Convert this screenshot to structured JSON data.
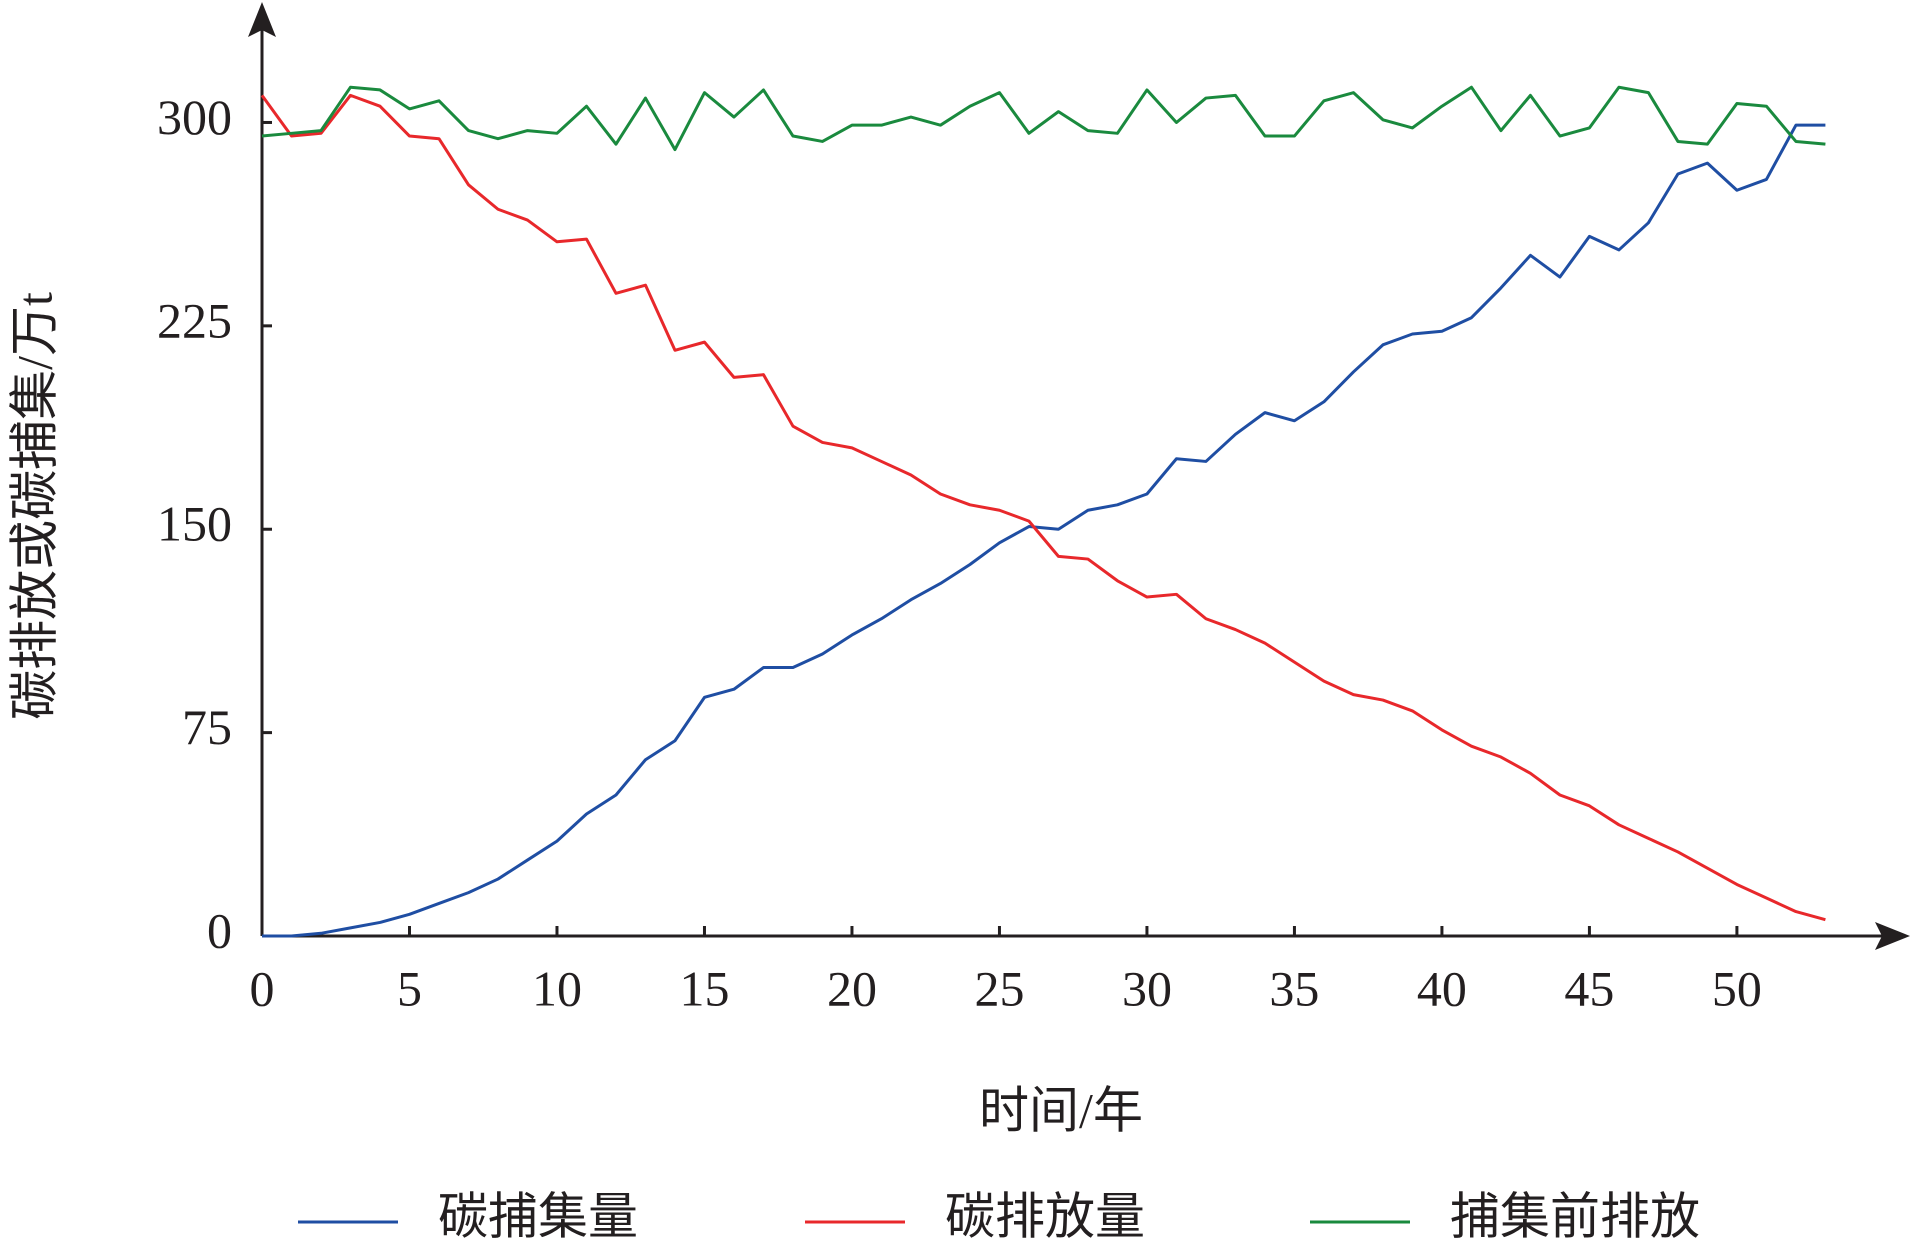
{
  "chart_data": {
    "type": "line",
    "x": [
      0,
      1,
      2,
      3,
      4,
      5,
      6,
      7,
      8,
      9,
      10,
      11,
      12,
      13,
      14,
      15,
      16,
      17,
      18,
      19,
      20,
      21,
      22,
      23,
      24,
      25,
      26,
      27,
      28,
      29,
      30,
      31,
      32,
      33,
      34,
      35,
      36,
      37,
      38,
      39,
      40,
      41,
      42,
      43,
      44,
      45,
      46,
      47,
      48,
      49,
      50,
      51,
      52,
      53
    ],
    "xlabel": "时间/年",
    "ylabel": "碳排放或碳捕集/万t",
    "xlim": [
      0,
      55.8
    ],
    "ylim": [
      0,
      340
    ],
    "xticks": [
      0,
      5,
      10,
      15,
      20,
      25,
      30,
      35,
      40,
      45,
      50
    ],
    "yticks": [
      0,
      75,
      150,
      225,
      300
    ],
    "legend": "bottom",
    "series": [
      {
        "name": "碳捕集量",
        "color": "#1f4ea3",
        "values": [
          0,
          0,
          1,
          3,
          5,
          8,
          12,
          16,
          21,
          28,
          35,
          45,
          52,
          65,
          72,
          88,
          91,
          99,
          99,
          104,
          111,
          117,
          124,
          130,
          137,
          145,
          151,
          150,
          157,
          159,
          163,
          176,
          175,
          185,
          193,
          190,
          197,
          208,
          218,
          222,
          223,
          228,
          239,
          251,
          243,
          258,
          253,
          263,
          281,
          285,
          275,
          279,
          299,
          299
        ]
      },
      {
        "name": "碳排放量",
        "color": "#e8282b",
        "values": [
          310,
          295,
          296,
          310,
          306,
          295,
          294,
          277,
          268,
          264,
          256,
          257,
          237,
          240,
          216,
          219,
          206,
          207,
          188,
          182,
          180,
          175,
          170,
          163,
          159,
          157,
          153,
          140,
          139,
          131,
          125,
          126,
          117,
          113,
          108,
          101,
          94,
          89,
          87,
          83,
          76,
          70,
          66,
          60,
          52,
          48,
          41,
          36,
          31,
          25,
          19,
          14,
          9,
          6
        ]
      },
      {
        "name": "捕集前排放",
        "color": "#1a8a3e",
        "values": [
          295,
          296,
          297,
          313,
          312,
          305,
          308,
          297,
          294,
          297,
          296,
          306,
          292,
          309,
          290,
          311,
          302,
          312,
          295,
          293,
          299,
          299,
          302,
          299,
          306,
          311,
          296,
          304,
          297,
          296,
          312,
          300,
          309,
          310,
          295,
          295,
          308,
          311,
          301,
          298,
          306,
          313,
          297,
          310,
          295,
          298,
          313,
          311,
          293,
          292,
          307,
          306,
          293,
          292
        ]
      }
    ]
  }
}
